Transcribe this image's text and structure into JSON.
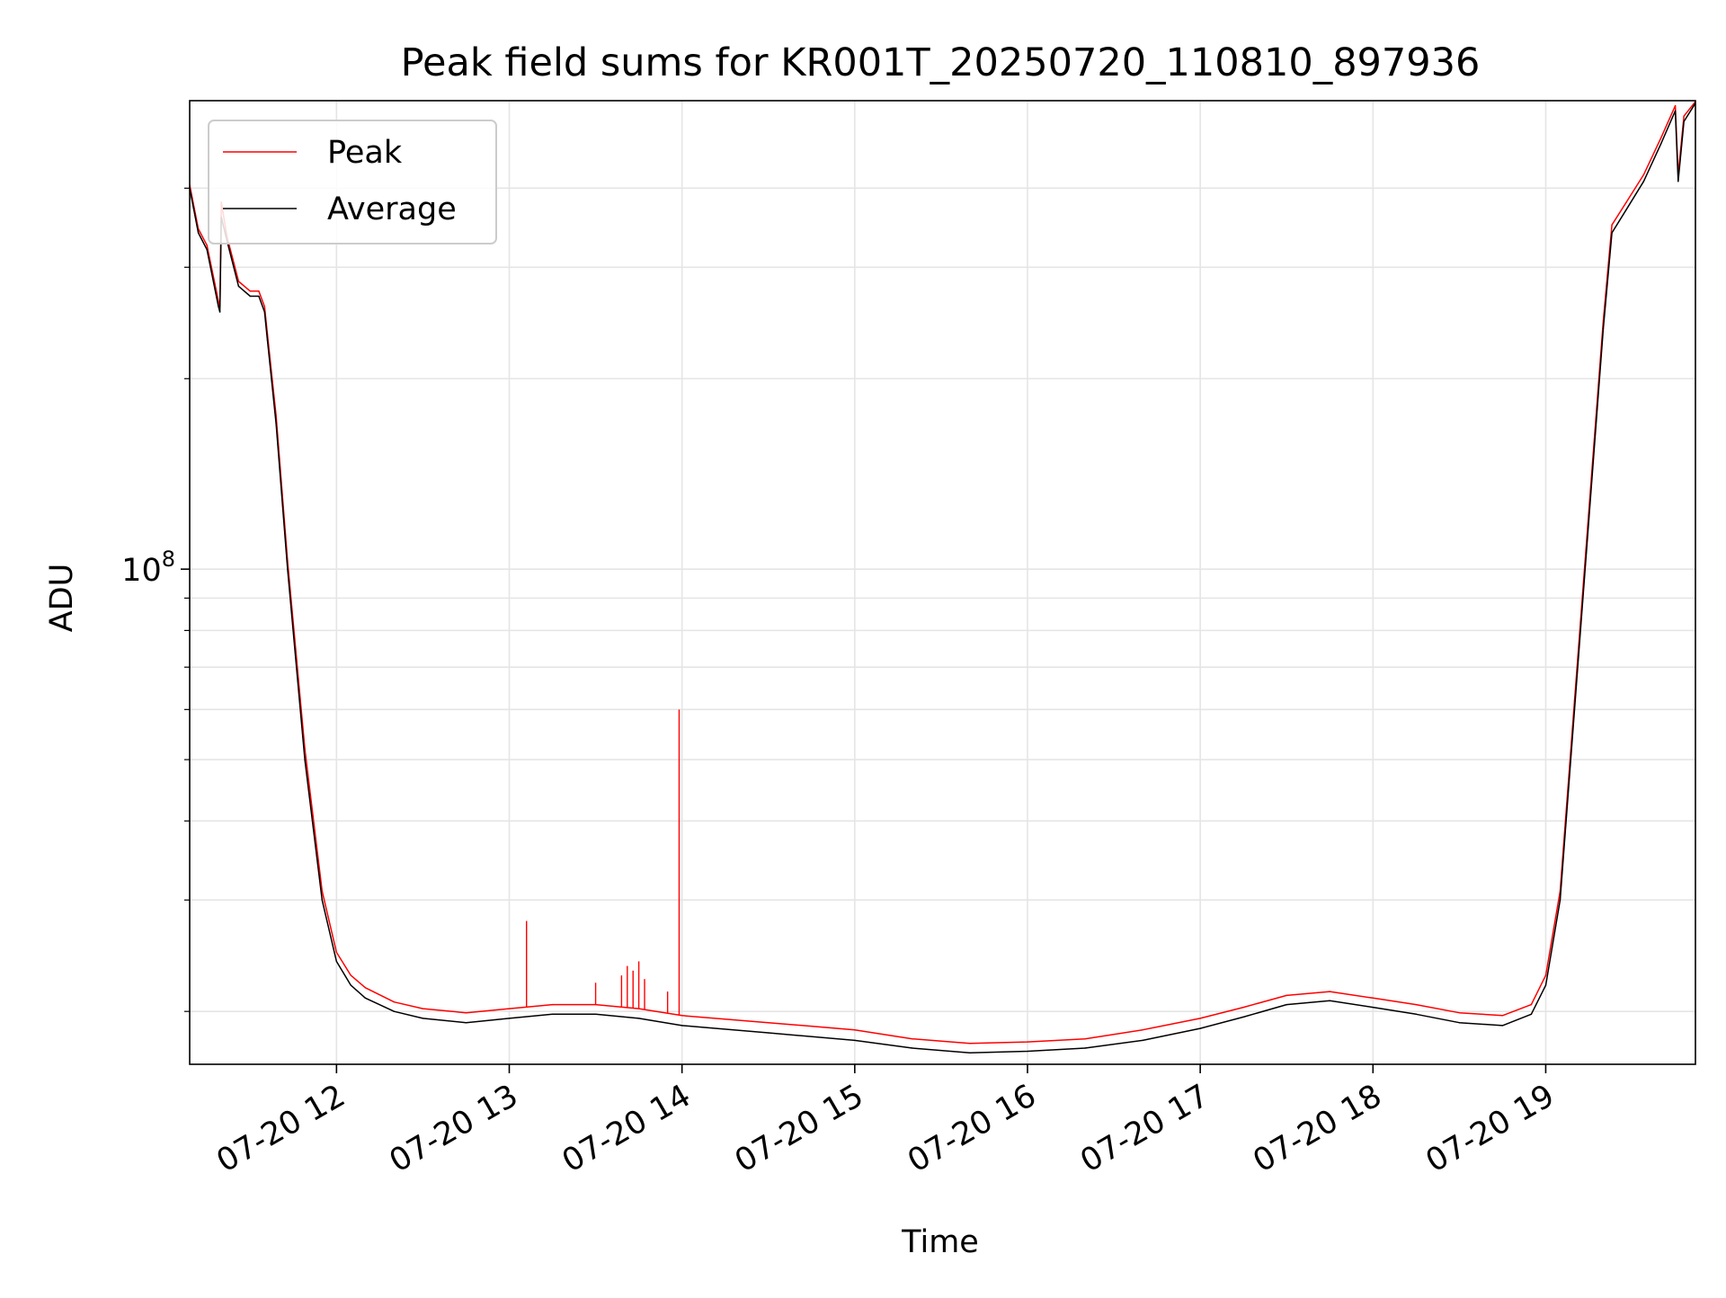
{
  "chart_data": {
    "type": "line",
    "title": "Peak field sums for KR001T_20250720_110810_897936",
    "xlabel": "Time",
    "ylabel": "ADU",
    "x_scale": "time",
    "y_scale": "log",
    "xlim": [
      "2025-07-20T11:09:00",
      "2025-07-20T19:52:00"
    ],
    "ylim": [
      16500000,
      550000000
    ],
    "x_ticks": [
      {
        "label": "07-20 12",
        "x": "2025-07-20T12:00:00"
      },
      {
        "label": "07-20 13",
        "x": "2025-07-20T13:00:00"
      },
      {
        "label": "07-20 14",
        "x": "2025-07-20T14:00:00"
      },
      {
        "label": "07-20 15",
        "x": "2025-07-20T15:00:00"
      },
      {
        "label": "07-20 16",
        "x": "2025-07-20T16:00:00"
      },
      {
        "label": "07-20 17",
        "x": "2025-07-20T17:00:00"
      },
      {
        "label": "07-20 18",
        "x": "2025-07-20T18:00:00"
      },
      {
        "label": "07-20 19",
        "x": "2025-07-20T19:00:00"
      }
    ],
    "y_major_ticks": [
      {
        "value": 100000000,
        "base": "10",
        "exp": "8"
      }
    ],
    "y_minor_ticks": [
      20000000,
      30000000,
      40000000,
      50000000,
      60000000,
      70000000,
      80000000,
      90000000,
      200000000,
      300000000,
      400000000
    ],
    "grid": true,
    "legend_position": "top-left",
    "colors": {
      "peak": "#ff0000",
      "average": "#000000",
      "grid": "#e5e5e5"
    },
    "series": [
      {
        "name": "Average",
        "color": "#000000",
        "x": [
          "2025-07-20T11:09:00",
          "2025-07-20T11:12:00",
          "2025-07-20T11:15:00",
          "2025-07-20T11:19:00",
          "2025-07-20T11:19:30",
          "2025-07-20T11:20:00",
          "2025-07-20T11:22:00",
          "2025-07-20T11:26:00",
          "2025-07-20T11:30:00",
          "2025-07-20T11:33:00",
          "2025-07-20T11:35:00",
          "2025-07-20T11:36:00",
          "2025-07-20T11:39:00",
          "2025-07-20T11:43:00",
          "2025-07-20T11:49:00",
          "2025-07-20T11:55:00",
          "2025-07-20T12:00:00",
          "2025-07-20T12:05:00",
          "2025-07-20T12:10:00",
          "2025-07-20T12:20:00",
          "2025-07-20T12:30:00",
          "2025-07-20T12:45:00",
          "2025-07-20T13:00:00",
          "2025-07-20T13:15:00",
          "2025-07-20T13:30:00",
          "2025-07-20T13:45:00",
          "2025-07-20T14:00:00",
          "2025-07-20T14:30:00",
          "2025-07-20T15:00:00",
          "2025-07-20T15:20:00",
          "2025-07-20T15:40:00",
          "2025-07-20T16:00:00",
          "2025-07-20T16:20:00",
          "2025-07-20T16:40:00",
          "2025-07-20T17:00:00",
          "2025-07-20T17:15:00",
          "2025-07-20T17:30:00",
          "2025-07-20T17:45:00",
          "2025-07-20T18:00:00",
          "2025-07-20T18:15:00",
          "2025-07-20T18:30:00",
          "2025-07-20T18:45:00",
          "2025-07-20T18:55:00",
          "2025-07-20T19:00:00",
          "2025-07-20T19:05:00",
          "2025-07-20T19:10:00",
          "2025-07-20T19:15:00",
          "2025-07-20T19:20:00",
          "2025-07-20T19:23:00",
          "2025-07-20T19:28:00",
          "2025-07-20T19:34:00",
          "2025-07-20T19:40:00",
          "2025-07-20T19:45:00",
          "2025-07-20T19:46:00",
          "2025-07-20T19:48:00",
          "2025-07-20T19:52:00"
        ],
        "values": [
          400000000,
          340000000,
          320000000,
          260000000,
          255000000,
          360000000,
          330000000,
          280000000,
          270000000,
          270000000,
          255000000,
          230000000,
          170000000,
          100000000,
          50000000,
          30000000,
          24000000,
          22000000,
          21000000,
          20000000,
          19500000,
          19200000,
          19500000,
          19800000,
          19800000,
          19500000,
          19000000,
          18500000,
          18000000,
          17500000,
          17200000,
          17300000,
          17500000,
          18000000,
          18800000,
          19600000,
          20500000,
          20800000,
          20300000,
          19800000,
          19200000,
          19000000,
          19800000,
          22000000,
          30000000,
          60000000,
          120000000,
          240000000,
          340000000,
          370000000,
          410000000,
          470000000,
          530000000,
          410000000,
          510000000,
          545000000
        ]
      },
      {
        "name": "Peak",
        "color": "#ff0000",
        "x": [
          "2025-07-20T11:09:00",
          "2025-07-20T11:12:00",
          "2025-07-20T11:15:00",
          "2025-07-20T11:19:00",
          "2025-07-20T11:19:30",
          "2025-07-20T11:20:00",
          "2025-07-20T11:22:00",
          "2025-07-20T11:26:00",
          "2025-07-20T11:30:00",
          "2025-07-20T11:33:00",
          "2025-07-20T11:35:00",
          "2025-07-20T11:36:00",
          "2025-07-20T11:39:00",
          "2025-07-20T11:43:00",
          "2025-07-20T11:49:00",
          "2025-07-20T11:55:00",
          "2025-07-20T12:00:00",
          "2025-07-20T12:05:00",
          "2025-07-20T12:10:00",
          "2025-07-20T12:20:00",
          "2025-07-20T12:30:00",
          "2025-07-20T12:45:00",
          "2025-07-20T13:00:00",
          "2025-07-20T13:15:00",
          "2025-07-20T13:30:00",
          "2025-07-20T13:45:00",
          "2025-07-20T14:00:00",
          "2025-07-20T14:30:00",
          "2025-07-20T15:00:00",
          "2025-07-20T15:20:00",
          "2025-07-20T15:40:00",
          "2025-07-20T16:00:00",
          "2025-07-20T16:20:00",
          "2025-07-20T16:40:00",
          "2025-07-20T17:00:00",
          "2025-07-20T17:15:00",
          "2025-07-20T17:30:00",
          "2025-07-20T17:45:00",
          "2025-07-20T18:00:00",
          "2025-07-20T18:15:00",
          "2025-07-20T18:30:00",
          "2025-07-20T18:45:00",
          "2025-07-20T18:55:00",
          "2025-07-20T19:00:00",
          "2025-07-20T19:05:00",
          "2025-07-20T19:10:00",
          "2025-07-20T19:15:00",
          "2025-07-20T19:20:00",
          "2025-07-20T19:23:00",
          "2025-07-20T19:28:00",
          "2025-07-20T19:34:00",
          "2025-07-20T19:40:00",
          "2025-07-20T19:45:00",
          "2025-07-20T19:46:00",
          "2025-07-20T19:48:00",
          "2025-07-20T19:52:00"
        ],
        "values": [
          405000000,
          345000000,
          325000000,
          265000000,
          260000000,
          380000000,
          335000000,
          285000000,
          275000000,
          275000000,
          260000000,
          235000000,
          175000000,
          103000000,
          52000000,
          31000000,
          24800000,
          22800000,
          21800000,
          20700000,
          20200000,
          19900000,
          20200000,
          20500000,
          20500000,
          20200000,
          19700000,
          19200000,
          18700000,
          18100000,
          17800000,
          17900000,
          18100000,
          18700000,
          19500000,
          20300000,
          21200000,
          21500000,
          21000000,
          20500000,
          19900000,
          19700000,
          20500000,
          22800000,
          31000000,
          62000000,
          124000000,
          247000000,
          350000000,
          380000000,
          420000000,
          480000000,
          540000000,
          420000000,
          520000000,
          548000000
        ]
      }
    ],
    "peak_spikes": [
      {
        "x": "2025-07-20T13:06:00",
        "value": 27800000
      },
      {
        "x": "2025-07-20T13:30:00",
        "value": 22200000
      },
      {
        "x": "2025-07-20T13:39:00",
        "value": 22800000
      },
      {
        "x": "2025-07-20T13:41:00",
        "value": 23600000
      },
      {
        "x": "2025-07-20T13:43:00",
        "value": 23200000
      },
      {
        "x": "2025-07-20T13:45:00",
        "value": 24000000
      },
      {
        "x": "2025-07-20T13:47:00",
        "value": 22500000
      },
      {
        "x": "2025-07-20T13:55:00",
        "value": 21500000
      },
      {
        "x": "2025-07-20T13:59:00",
        "value": 60000000
      }
    ]
  }
}
